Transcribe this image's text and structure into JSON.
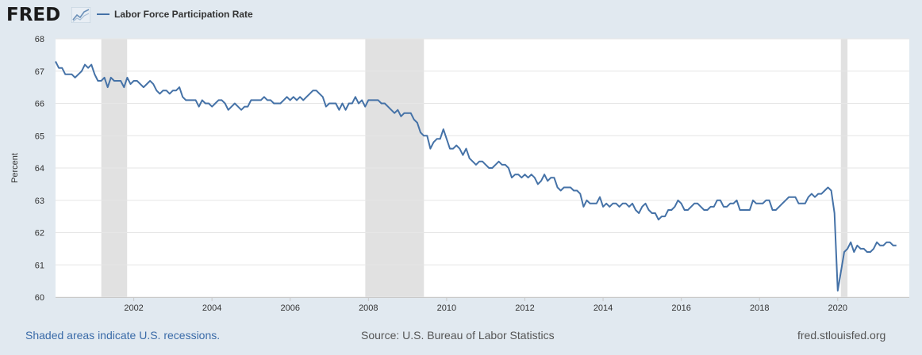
{
  "header": {
    "logo_text": "FRED",
    "legend_label": "Labor Force Participation Rate",
    "legend_color": "#4572a7"
  },
  "footer": {
    "recession_note": "Shaded areas indicate U.S. recessions.",
    "source": "Source: U.S. Bureau of Labor Statistics",
    "site": "fred.stlouisfed.org"
  },
  "chart_data": {
    "type": "line",
    "title": "",
    "xlabel": "",
    "ylabel": "Percent",
    "ylim": [
      60,
      68
    ],
    "yticks": [
      60,
      61,
      62,
      63,
      64,
      65,
      66,
      67,
      68
    ],
    "xlim": [
      2000.0,
      2021.83
    ],
    "xticks": [
      "2002",
      "2004",
      "2006",
      "2008",
      "2010",
      "2012",
      "2014",
      "2016",
      "2018",
      "2020"
    ],
    "grid": true,
    "line_color": "#4572a7",
    "recessions": [
      [
        2001.17,
        2001.83
      ],
      [
        2007.92,
        2009.42
      ],
      [
        2020.08,
        2020.25
      ]
    ],
    "series": [
      {
        "name": "Labor Force Participation Rate",
        "start": "2000-01",
        "frequency": "monthly",
        "values": [
          67.3,
          67.1,
          67.1,
          66.9,
          66.9,
          66.9,
          66.8,
          66.9,
          67.0,
          67.2,
          67.1,
          67.2,
          66.9,
          66.7,
          66.7,
          66.8,
          66.5,
          66.8,
          66.7,
          66.7,
          66.7,
          66.5,
          66.8,
          66.6,
          66.7,
          66.7,
          66.6,
          66.5,
          66.6,
          66.7,
          66.6,
          66.4,
          66.3,
          66.4,
          66.4,
          66.3,
          66.4,
          66.4,
          66.5,
          66.2,
          66.1,
          66.1,
          66.1,
          66.1,
          65.9,
          66.1,
          66.0,
          66.0,
          65.9,
          66.0,
          66.1,
          66.1,
          66.0,
          65.8,
          65.9,
          66.0,
          65.9,
          65.8,
          65.9,
          65.9,
          66.1,
          66.1,
          66.1,
          66.1,
          66.2,
          66.1,
          66.1,
          66.0,
          66.0,
          66.0,
          66.1,
          66.2,
          66.1,
          66.2,
          66.1,
          66.2,
          66.1,
          66.2,
          66.3,
          66.4,
          66.4,
          66.3,
          66.2,
          65.9,
          66.0,
          66.0,
          66.0,
          65.8,
          66.0,
          65.8,
          66.0,
          66.0,
          66.2,
          66.0,
          66.1,
          65.9,
          66.1,
          66.1,
          66.1,
          66.1,
          66.0,
          66.0,
          65.9,
          65.8,
          65.7,
          65.8,
          65.6,
          65.7,
          65.7,
          65.7,
          65.5,
          65.4,
          65.1,
          65.0,
          65.0,
          64.6,
          64.8,
          64.9,
          64.9,
          65.2,
          64.9,
          64.6,
          64.6,
          64.7,
          64.6,
          64.4,
          64.6,
          64.3,
          64.2,
          64.1,
          64.2,
          64.2,
          64.1,
          64.0,
          64.0,
          64.1,
          64.2,
          64.1,
          64.1,
          64.0,
          63.7,
          63.8,
          63.8,
          63.7,
          63.8,
          63.7,
          63.8,
          63.7,
          63.5,
          63.6,
          63.8,
          63.6,
          63.7,
          63.7,
          63.4,
          63.3,
          63.4,
          63.4,
          63.4,
          63.3,
          63.3,
          63.2,
          62.8,
          63.0,
          62.9,
          62.9,
          62.9,
          63.1,
          62.8,
          62.9,
          62.8,
          62.9,
          62.9,
          62.8,
          62.9,
          62.9,
          62.8,
          62.9,
          62.7,
          62.6,
          62.8,
          62.9,
          62.7,
          62.6,
          62.6,
          62.4,
          62.5,
          62.5,
          62.7,
          62.7,
          62.8,
          63.0,
          62.9,
          62.7,
          62.7,
          62.8,
          62.9,
          62.9,
          62.8,
          62.7,
          62.7,
          62.8,
          62.8,
          63.0,
          63.0,
          62.8,
          62.8,
          62.9,
          62.9,
          63.0,
          62.7,
          62.7,
          62.7,
          62.7,
          63.0,
          62.9,
          62.9,
          62.9,
          63.0,
          63.0,
          62.7,
          62.7,
          62.8,
          62.9,
          63.0,
          63.1,
          63.1,
          63.1,
          62.9,
          62.9,
          62.9,
          63.1,
          63.2,
          63.1,
          63.2,
          63.2,
          63.3,
          63.4,
          63.3,
          62.6,
          60.2,
          60.8,
          61.4,
          61.5,
          61.7,
          61.4,
          61.6,
          61.5,
          61.5,
          61.4,
          61.4,
          61.5,
          61.7,
          61.6,
          61.6,
          61.7,
          61.7,
          61.6,
          61.6
        ]
      }
    ]
  }
}
